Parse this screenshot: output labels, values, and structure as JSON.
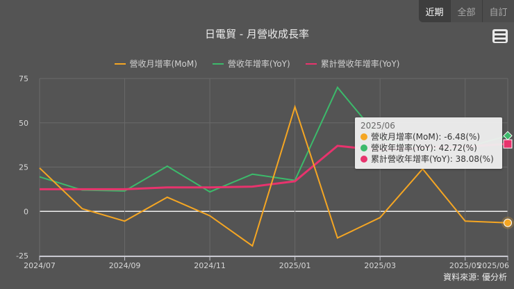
{
  "range_buttons": [
    {
      "label": "近期",
      "active": true
    },
    {
      "label": "全部",
      "active": false
    },
    {
      "label": "自訂",
      "active": false
    }
  ],
  "menu_icon": "hamburger-menu-icon",
  "source_label": "資料來源: 優分析",
  "tooltip": {
    "date": "2025/06",
    "rows": [
      {
        "label": "營收月增率(MoM): -6.48(%)",
        "color": "#f5a623"
      },
      {
        "label": "營收年增率(YoY): 42.72(%)",
        "color": "#3cba6b"
      },
      {
        "label": "累計營收年增率(YoY): 38.08(%)",
        "color": "#e8336d"
      }
    ]
  },
  "chart_data": {
    "type": "line",
    "title": "日電貿 - 月營收成長率",
    "xlabel": "",
    "ylabel": "",
    "ylim": [
      -25,
      75
    ],
    "yticks": [
      75,
      50,
      25,
      0,
      -25
    ],
    "grid": true,
    "legend_position": "top",
    "x": [
      "2024/07",
      "2024/08",
      "2024/09",
      "2024/10",
      "2024/11",
      "2024/12",
      "2025/01",
      "2025/02",
      "2025/03",
      "2025/04",
      "2025/05",
      "2025/06"
    ],
    "xtick_labels": [
      "2024/07",
      "2024/09",
      "2024/11",
      "2025/01",
      "2025/03",
      "2025/05",
      "2025/06"
    ],
    "series": [
      {
        "name": "營收月增率(MoM)",
        "color": "#f5a623",
        "values": [
          24.5,
          1.5,
          -5.5,
          8.0,
          -2.5,
          -19.5,
          59.0,
          -15.0,
          -3.5,
          24.0,
          -5.5,
          -6.48
        ]
      },
      {
        "name": "營收年增率(YoY)",
        "color": "#3cba6b",
        "values": [
          19.5,
          12.0,
          11.5,
          25.5,
          11.0,
          21.0,
          17.5,
          70.0,
          41.0,
          35.0,
          36.0,
          42.72
        ]
      },
      {
        "name": "累計營收年增率(YoY)",
        "color": "#e8336d",
        "values": [
          12.5,
          12.5,
          12.5,
          13.5,
          13.5,
          14.0,
          17.0,
          37.0,
          34.5,
          36.0,
          36.5,
          38.08
        ]
      }
    ]
  }
}
